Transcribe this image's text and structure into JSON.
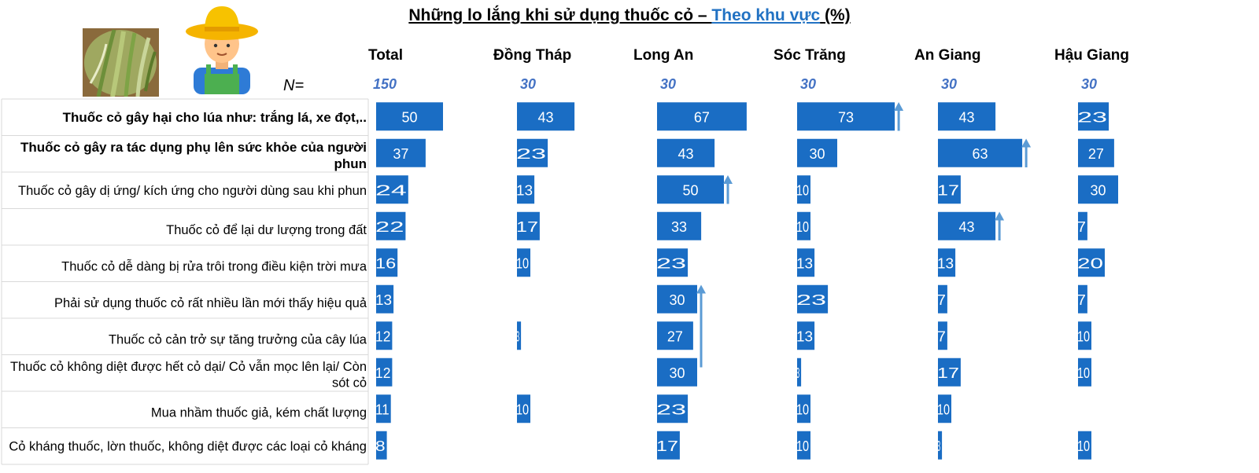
{
  "title": {
    "main": "Những lo lắng khi sử dụng thuốc cỏ – ",
    "highlight": "Theo khu vực",
    "suffix": " (%)"
  },
  "n_label": "N=",
  "colors": {
    "bar": "#1a6dc4",
    "bar_text": "#ffffff",
    "n_value": "#4472c4",
    "arrow": "#5b9bd5",
    "title_highlight": "#2272c3",
    "row_border": "#d9d9d9"
  },
  "icons": [
    "rice-plant-photo",
    "farmer-icon",
    "up-arrow-icon"
  ],
  "chart_data": {
    "type": "bar",
    "title": "Những lo lắng khi sử dụng thuốc cỏ – Theo khu vực (%)",
    "xlim": [
      0,
      100
    ],
    "categories": [
      "Thuốc cỏ gây hại cho lúa như: trắng lá, xe đọt,..",
      "Thuốc cỏ gây ra tác dụng phụ lên sức khỏe của người phun",
      "Thuốc cỏ gây dị ứng/ kích ứng cho người dùng sau khi phun",
      "Thuốc cỏ để lại dư lượng trong đất",
      "Thuốc cỏ dễ dàng bị rửa trôi trong điều kiện trời mưa",
      "Phải sử dụng thuốc cỏ rất nhiều lần mới thấy hiệu quả",
      "Thuốc cỏ cản trở sự tăng trưởng của cây lúa",
      "Thuốc cỏ không diệt được hết cỏ dại/ Cỏ vẫn mọc lên lại/ Còn sót cỏ",
      "Mua nhầm thuốc giả, kém chất lượng",
      "Cỏ kháng thuốc, lờn thuốc, không diệt được các loại cỏ kháng"
    ],
    "bold_categories": [
      0,
      1
    ],
    "series": [
      {
        "name": "Total",
        "n": "150",
        "values": [
          50,
          37,
          24,
          22,
          16,
          13,
          12,
          12,
          11,
          8
        ],
        "arrows": []
      },
      {
        "name": "Đồng Tháp",
        "n": "30",
        "values": [
          43,
          23,
          13,
          17,
          10,
          0,
          3,
          0,
          10,
          0
        ],
        "arrows": []
      },
      {
        "name": "Long An",
        "n": "30",
        "values": [
          67,
          43,
          50,
          33,
          23,
          30,
          27,
          30,
          23,
          17
        ],
        "arrows": [
          2,
          5
        ]
      },
      {
        "name": "Sóc Trăng",
        "n": "30",
        "values": [
          73,
          30,
          10,
          10,
          13,
          23,
          13,
          3,
          10,
          10
        ],
        "arrows": [
          0
        ]
      },
      {
        "name": "An Giang",
        "n": "30",
        "values": [
          43,
          63,
          17,
          43,
          13,
          7,
          7,
          17,
          10,
          3
        ],
        "arrows": [
          1,
          3
        ]
      },
      {
        "name": "Hậu Giang",
        "n": "30",
        "values": [
          23,
          27,
          30,
          7,
          20,
          7,
          10,
          10,
          0,
          10
        ],
        "arrows": []
      }
    ]
  }
}
